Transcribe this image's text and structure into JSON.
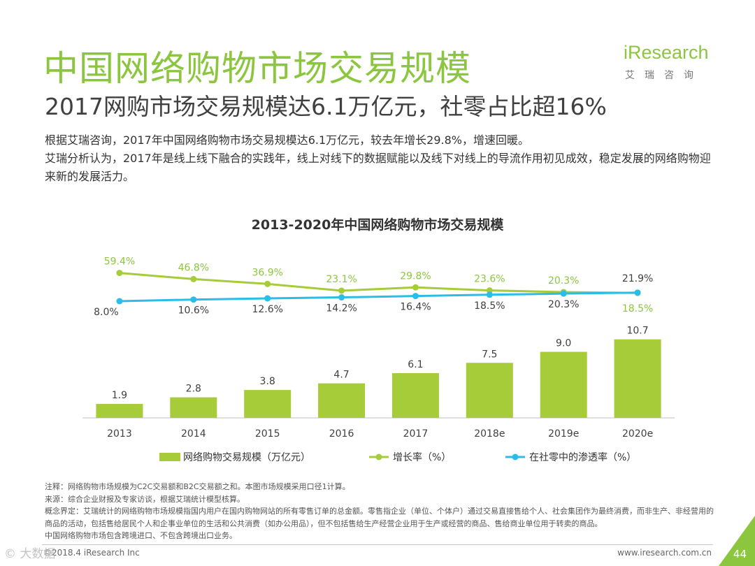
{
  "header": {
    "title": "中国网络购物市场交易规模",
    "subtitle": "2017网购市场交易规模达6.1万亿元，社零占比超16%"
  },
  "logo": {
    "wordmark": "iResearch",
    "cn": "艾瑞咨询",
    "color": "#8cc63f"
  },
  "summary": {
    "line1": "根据艾瑞咨询，2017年中国网络购物市场交易规模达6.1万亿元，较去年增长29.8%，增速回暖。",
    "line2": "艾瑞分析认为，2017年是线上线下融合的实践年，线上对线下的数据赋能以及线下对线上的导流作用初见成效，稳定发展的网络购物迎来新的发展活力。"
  },
  "chart_data": {
    "type": "bar",
    "title": "2013-2020年中国网络购物市场交易规模",
    "categories": [
      "2013",
      "2014",
      "2015",
      "2016",
      "2017",
      "2018e",
      "2019e",
      "2020e"
    ],
    "series": [
      {
        "name": "网络购物交易规模（万亿元）",
        "type": "bar",
        "color": "#a6cc3a",
        "values": [
          1.9,
          2.8,
          3.8,
          4.7,
          6.1,
          7.5,
          9.0,
          10.7
        ],
        "labels": [
          "1.9",
          "2.8",
          "3.8",
          "4.7",
          "6.1",
          "7.5",
          "9.0",
          "10.7"
        ]
      },
      {
        "name": "增长率（%）",
        "type": "line",
        "color": "#a6cc3a",
        "values": [
          59.4,
          46.8,
          36.9,
          23.1,
          29.8,
          23.6,
          20.3,
          18.5
        ],
        "labels": [
          "59.4%",
          "46.8%",
          "36.9%",
          "23.1%",
          "29.8%",
          "23.6%",
          "20.3%",
          "18.5%"
        ]
      },
      {
        "name": "在社零中的渗透率（%）",
        "type": "line",
        "color": "#29bde8",
        "values": [
          8.0,
          10.6,
          12.6,
          14.2,
          16.4,
          18.5,
          20.3,
          21.9
        ],
        "labels": [
          "8.0%",
          "10.6%",
          "12.6%",
          "14.2%",
          "16.4%",
          "18.5%",
          "20.3%",
          "21.9%"
        ]
      }
    ],
    "legend_position": "bottom",
    "grid": false
  },
  "notes": {
    "n1": "注释：网络购物市场规模为C2C交易额和B2C交易额之和。本图市场规模采用口径1计算。",
    "n2": "来源：综合企业财报及专家访谈，根据艾瑞统计模型核算。",
    "n3": "概念界定：艾瑞统计的网络购物市场规模指国内用户在国内购物网站的所有零售订单的总金额。零售指企业（单位、个体户）通过交易直接售给个人、社会集团作为最终消费，而非生产、非经营用的商品的活动，包括售给居民个人和企事业单位的生活和公共消费（如办公用品），但不包括售给生产经营企业用于生产或经营的商品、售给商业单位用于转卖的商品。",
    "n4": "中国网络购物市场包含跨境进口、不包含跨境出口业务。"
  },
  "footer": {
    "left": "©2018.4 iResearch Inc",
    "right": "www.iresearch.com.cn",
    "page": "44",
    "watermark": "© 大数据"
  },
  "colors": {
    "accent": "#8cc63f",
    "bar": "#a6cc3a",
    "penetration": "#29bde8"
  }
}
